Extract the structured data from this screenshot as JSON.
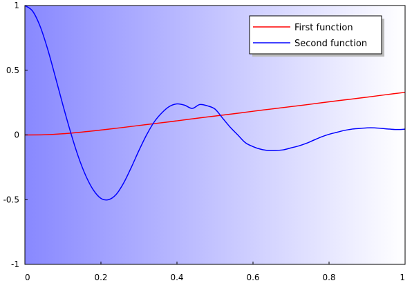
{
  "chart_data": {
    "type": "line",
    "title": "",
    "xlabel": "",
    "ylabel": "",
    "xlim": [
      0,
      1
    ],
    "ylim": [
      -1,
      1
    ],
    "x_ticks": [
      "0",
      "0.2",
      "0.4",
      "0.6",
      "0.8",
      "1"
    ],
    "x_tick_values": [
      0,
      0.2,
      0.4,
      0.6,
      0.8,
      1
    ],
    "y_ticks": [
      "-1",
      "-0.5",
      "0",
      "0.5",
      "1"
    ],
    "y_tick_values": [
      -1,
      -0.5,
      0,
      0.5,
      1
    ],
    "grid": false,
    "legend_position": "top-right",
    "background_gradient": {
      "left": "#8888ff",
      "right": "#ffffff"
    },
    "series": [
      {
        "name": "First function",
        "color": "#ff0000",
        "x": [
          0,
          0.05,
          0.1,
          0.15,
          0.2,
          0.25,
          0.3,
          0.35,
          0.4,
          0.45,
          0.5,
          0.55,
          0.6,
          0.65,
          0.7,
          0.75,
          0.8,
          0.85,
          0.9,
          0.95,
          1
        ],
        "y": [
          0.0,
          0.001,
          0.009,
          0.022,
          0.038,
          0.055,
          0.073,
          0.091,
          0.109,
          0.128,
          0.146,
          0.164,
          0.183,
          0.201,
          0.219,
          0.237,
          0.256,
          0.274,
          0.292,
          0.311,
          0.329
        ]
      },
      {
        "name": "Second function",
        "color": "#0000ff",
        "x": [
          0,
          0.02,
          0.04,
          0.06,
          0.08,
          0.1,
          0.12,
          0.14,
          0.16,
          0.18,
          0.2,
          0.22,
          0.24,
          0.26,
          0.28,
          0.3,
          0.32,
          0.34,
          0.36,
          0.38,
          0.4,
          0.42,
          0.44,
          0.46,
          0.48,
          0.5,
          0.52,
          0.54,
          0.56,
          0.58,
          0.6,
          0.62,
          0.64,
          0.66,
          0.68,
          0.7,
          0.72,
          0.74,
          0.76,
          0.78,
          0.8,
          0.82,
          0.84,
          0.86,
          0.88,
          0.9,
          0.92,
          0.94,
          0.96,
          0.98,
          1
        ],
        "y": [
          1.0,
          0.958,
          0.84,
          0.662,
          0.45,
          0.231,
          0.023,
          -0.163,
          -0.314,
          -0.425,
          -0.49,
          -0.5,
          -0.46,
          -0.37,
          -0.25,
          -0.12,
          -0.0,
          0.1,
          0.17,
          0.22,
          0.24,
          0.23,
          0.205,
          0.235,
          0.225,
          0.2,
          0.13,
          0.06,
          -0.0,
          -0.06,
          -0.09,
          -0.11,
          -0.12,
          -0.12,
          -0.115,
          -0.1,
          -0.085,
          -0.065,
          -0.04,
          -0.015,
          0.005,
          0.02,
          0.035,
          0.045,
          0.05,
          0.055,
          0.055,
          0.05,
          0.045,
          0.042,
          0.045
        ]
      }
    ]
  }
}
